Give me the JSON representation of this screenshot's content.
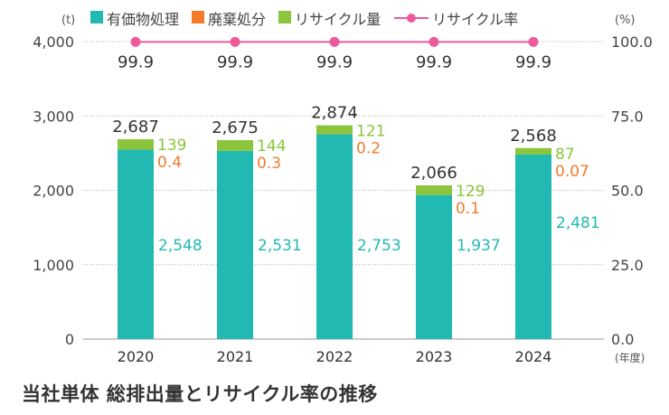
{
  "chart_data": {
    "type": "bar",
    "title": "当社単体 総排出量とリサイクル率の推移",
    "ylabel_left": "(t)",
    "ylabel_right": "(%)",
    "xlabel": "(年度)",
    "ylim": [
      0,
      4000
    ],
    "ylim_right": [
      0,
      100
    ],
    "left_ticks": [
      "0",
      "1,000",
      "2,000",
      "3,000",
      "4,000"
    ],
    "right_ticks": [
      "0.0",
      "25.0",
      "50.0",
      "75.0",
      "100.0"
    ],
    "categories": [
      "2020",
      "2021",
      "2022",
      "2023",
      "2024"
    ],
    "series": [
      {
        "name": "有価物処理",
        "color": "#22b9b3",
        "values": [
          2548,
          2531,
          2753,
          1937,
          2481
        ],
        "labels": [
          "2,548",
          "2,531",
          "2,753",
          "1,937",
          "2,481"
        ]
      },
      {
        "name": "廃棄処分",
        "color": "#f47a2a",
        "values": [
          0.4,
          0.3,
          0.2,
          0.1,
          0.07
        ],
        "labels": [
          "0.4",
          "0.3",
          "0.2",
          "0.1",
          "0.07"
        ]
      },
      {
        "name": "リサイクル量",
        "color": "#8cc43c",
        "values": [
          139,
          144,
          121,
          129,
          87
        ],
        "labels": [
          "139",
          "144",
          "121",
          "129",
          "87"
        ]
      },
      {
        "name": "リサイクル率",
        "color": "#ec5a9c",
        "type": "line",
        "values": [
          99.9,
          99.9,
          99.9,
          99.9,
          99.9
        ],
        "labels": [
          "99.9",
          "99.9",
          "99.9",
          "99.9",
          "99.9"
        ]
      }
    ],
    "totals": [
      "2,687",
      "2,675",
      "2,874",
      "2,066",
      "2,568"
    ],
    "grid": true,
    "legend": "top"
  }
}
